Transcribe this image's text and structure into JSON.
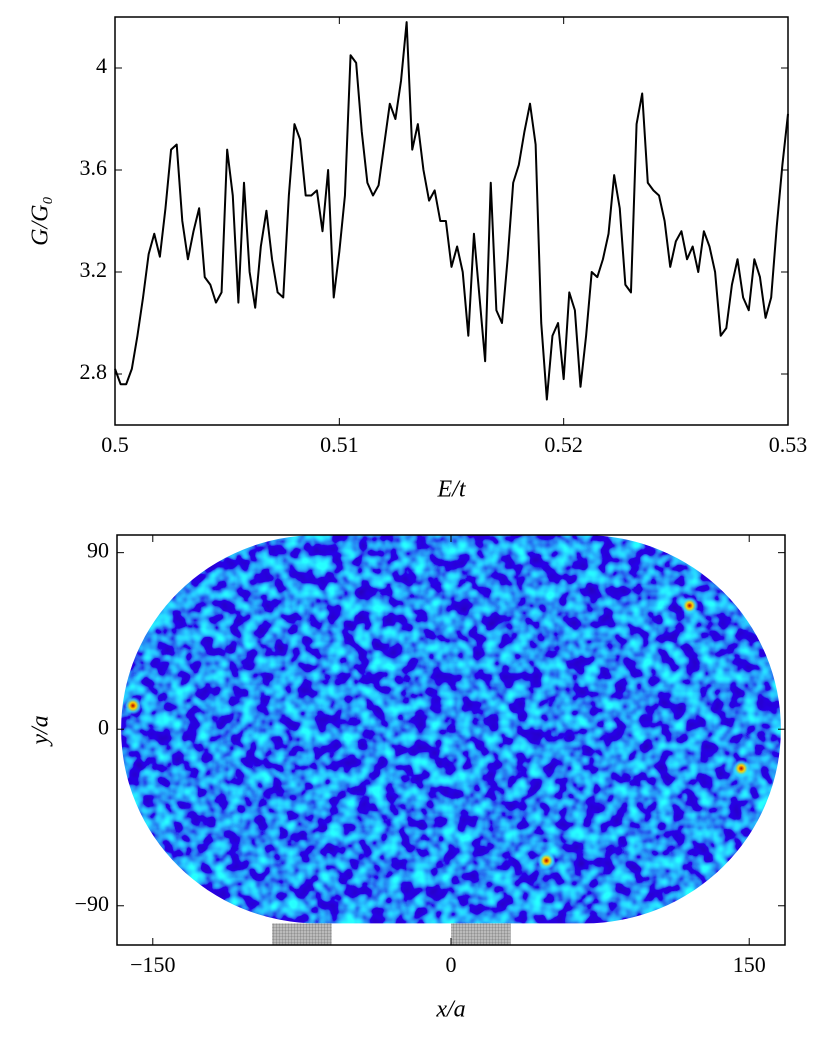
{
  "chart_data": [
    {
      "type": "line",
      "xlabel": "E/t",
      "ylabel": "G/G₀",
      "xlim": [
        0.5,
        0.53
      ],
      "ylim": [
        2.6,
        4.2
      ],
      "xticks": [
        0.5,
        0.51,
        0.52,
        0.53
      ],
      "yticks": [
        2.8,
        3.2,
        3.6,
        4
      ],
      "x": [
        0.5,
        0.50025,
        0.5005,
        0.50075,
        0.501,
        0.50125,
        0.5015,
        0.50175,
        0.502,
        0.50225,
        0.5025,
        0.50275,
        0.503,
        0.50325,
        0.5035,
        0.50375,
        0.504,
        0.50425,
        0.5045,
        0.50475,
        0.505,
        0.50525,
        0.5055,
        0.50575,
        0.506,
        0.50625,
        0.5065,
        0.50675,
        0.507,
        0.50725,
        0.5075,
        0.50775,
        0.508,
        0.50825,
        0.5085,
        0.50875,
        0.509,
        0.50925,
        0.5095,
        0.50975,
        0.51,
        0.51025,
        0.5105,
        0.51075,
        0.511,
        0.51125,
        0.5115,
        0.51175,
        0.512,
        0.51225,
        0.5125,
        0.51275,
        0.513,
        0.51325,
        0.5135,
        0.51375,
        0.514,
        0.51425,
        0.5145,
        0.51475,
        0.515,
        0.51525,
        0.5155,
        0.51575,
        0.516,
        0.51625,
        0.5165,
        0.51675,
        0.517,
        0.51725,
        0.5175,
        0.51775,
        0.518,
        0.51825,
        0.5185,
        0.51875,
        0.519,
        0.51925,
        0.5195,
        0.51975,
        0.52,
        0.52025,
        0.5205,
        0.52075,
        0.521,
        0.52125,
        0.5215,
        0.52175,
        0.522,
        0.52225,
        0.5225,
        0.52275,
        0.523,
        0.52325,
        0.5235,
        0.52375,
        0.524,
        0.52425,
        0.5245,
        0.52475,
        0.525,
        0.52525,
        0.5255,
        0.52575,
        0.526,
        0.52625,
        0.5265,
        0.52675,
        0.527,
        0.52725,
        0.5275,
        0.52775,
        0.528,
        0.52825,
        0.5285,
        0.52875,
        0.529,
        0.52925,
        0.5295,
        0.52975,
        0.53
      ],
      "series": [
        {
          "color": "#000000",
          "values": [
            2.82,
            2.76,
            2.76,
            2.82,
            2.95,
            3.1,
            3.27,
            3.35,
            3.26,
            3.45,
            3.68,
            3.7,
            3.4,
            3.25,
            3.36,
            3.45,
            3.18,
            3.15,
            3.08,
            3.12,
            3.68,
            3.5,
            3.08,
            3.55,
            3.2,
            3.06,
            3.3,
            3.44,
            3.25,
            3.12,
            3.1,
            3.5,
            3.78,
            3.72,
            3.5,
            3.5,
            3.52,
            3.36,
            3.6,
            3.1,
            3.28,
            3.5,
            4.05,
            4.02,
            3.75,
            3.55,
            3.5,
            3.54,
            3.7,
            3.86,
            3.8,
            3.95,
            4.18,
            3.68,
            3.78,
            3.6,
            3.48,
            3.52,
            3.4,
            3.4,
            3.22,
            3.3,
            3.2,
            2.95,
            3.35,
            3.1,
            2.85,
            3.55,
            3.05,
            3.0,
            3.25,
            3.55,
            3.62,
            3.75,
            3.86,
            3.7,
            3.0,
            2.7,
            2.95,
            3.0,
            2.78,
            3.12,
            3.05,
            2.75,
            2.95,
            3.2,
            3.18,
            3.25,
            3.35,
            3.58,
            3.45,
            3.15,
            3.12,
            3.78,
            3.9,
            3.55,
            3.52,
            3.5,
            3.4,
            3.22,
            3.32,
            3.36,
            3.25,
            3.3,
            3.2,
            3.36,
            3.3,
            3.2,
            2.95,
            2.98,
            3.15,
            3.25,
            3.1,
            3.05,
            3.25,
            3.18,
            3.02,
            3.1,
            3.38,
            3.62,
            3.82
          ]
        }
      ]
    },
    {
      "type": "heatmap",
      "xlabel": "x/a",
      "ylabel": "y/a",
      "xlim": [
        -168,
        168
      ],
      "ylim": [
        -110,
        99
      ],
      "xticks": [
        {
          "value": -150,
          "label": "−150"
        },
        0,
        150
      ],
      "yticks": [
        {
          "value": -90,
          "label": "−90"
        },
        0,
        90
      ],
      "stadium_half_length": 67,
      "stadium_radius": 99,
      "leads": [
        [
          -90,
          -60
        ],
        [
          0,
          30
        ]
      ],
      "peaks": {
        "x": [
          -160,
          146,
          120,
          48
        ],
        "y": [
          12,
          -20,
          63,
          -67
        ]
      }
    }
  ]
}
